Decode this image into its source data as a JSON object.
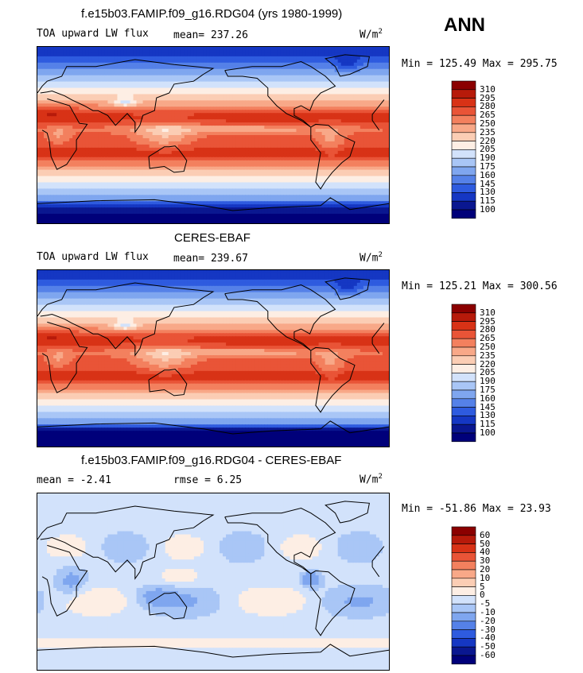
{
  "season": "ANN",
  "panels": [
    {
      "title": "f.e15b03.FAMIP.f09_g16.RDG04 (yrs 1980-1999)",
      "left_label": "TOA upward LW flux",
      "center_label": "mean= 237.26",
      "units": "W/m",
      "units_sup": "2",
      "minmax": "Min = 125.49 Max = 295.75"
    },
    {
      "title": "CERES-EBAF",
      "left_label": "TOA upward LW flux",
      "center_label": "mean= 239.67",
      "units": "W/m",
      "units_sup": "2",
      "minmax": "Min = 125.21 Max = 300.56"
    },
    {
      "title": "f.e15b03.FAMIP.f09_g16.RDG04 - CERES-EBAF",
      "left_label": "mean =  -2.41",
      "center_label": "rmse =   6.25",
      "units": "W/m",
      "units_sup": "2",
      "minmax": "Min = -51.86 Max =  23.93"
    }
  ],
  "colorbars": {
    "flux": {
      "levels": [
        "310",
        "295",
        "280",
        "265",
        "250",
        "235",
        "220",
        "205",
        "190",
        "175",
        "160",
        "145",
        "130",
        "115",
        "100"
      ],
      "colors": [
        "#8b0000",
        "#b71a0a",
        "#d83216",
        "#e95437",
        "#f3805e",
        "#f8a888",
        "#fbcdb4",
        "#fdeee4",
        "#d2e2fb",
        "#a9c6f6",
        "#7fa6ef",
        "#5581e8",
        "#2e5bdf",
        "#1537c3",
        "#0a1790",
        "#00007a"
      ]
    },
    "diff": {
      "levels": [
        "60",
        "50",
        "40",
        "30",
        "20",
        "10",
        "5",
        "0",
        "-5",
        "-10",
        "-20",
        "-30",
        "-40",
        "-50",
        "-60"
      ],
      "colors": [
        "#8b0000",
        "#b71a0a",
        "#d83216",
        "#e95437",
        "#f3805e",
        "#f8a888",
        "#fbcdb4",
        "#fdeee4",
        "#d2e2fb",
        "#a9c6f6",
        "#7fa6ef",
        "#5581e8",
        "#2e5bdf",
        "#1537c3",
        "#0a1790",
        "#00007a"
      ]
    }
  },
  "chart_data": [
    {
      "type": "heatmap",
      "title": "f.e15b03.FAMIP.f09_g16.RDG04 (yrs 1980-1999)",
      "variable": "TOA upward LW flux",
      "units": "W/m2",
      "mean": 237.26,
      "min": 125.49,
      "max": 295.75,
      "contour_levels": [
        100,
        115,
        130,
        145,
        160,
        175,
        190,
        205,
        220,
        235,
        250,
        265,
        280,
        295,
        310
      ]
    },
    {
      "type": "heatmap",
      "title": "CERES-EBAF",
      "variable": "TOA upward LW flux",
      "units": "W/m2",
      "mean": 239.67,
      "min": 125.21,
      "max": 300.56,
      "contour_levels": [
        100,
        115,
        130,
        145,
        160,
        175,
        190,
        205,
        220,
        235,
        250,
        265,
        280,
        295,
        310
      ]
    },
    {
      "type": "heatmap",
      "title": "f.e15b03.FAMIP.f09_g16.RDG04 - CERES-EBAF",
      "units": "W/m2",
      "mean": -2.41,
      "rmse": 6.25,
      "min": -51.86,
      "max": 23.93,
      "contour_levels": [
        -60,
        -50,
        -40,
        -30,
        -20,
        -10,
        -5,
        0,
        5,
        10,
        20,
        30,
        40,
        50,
        60
      ]
    }
  ]
}
